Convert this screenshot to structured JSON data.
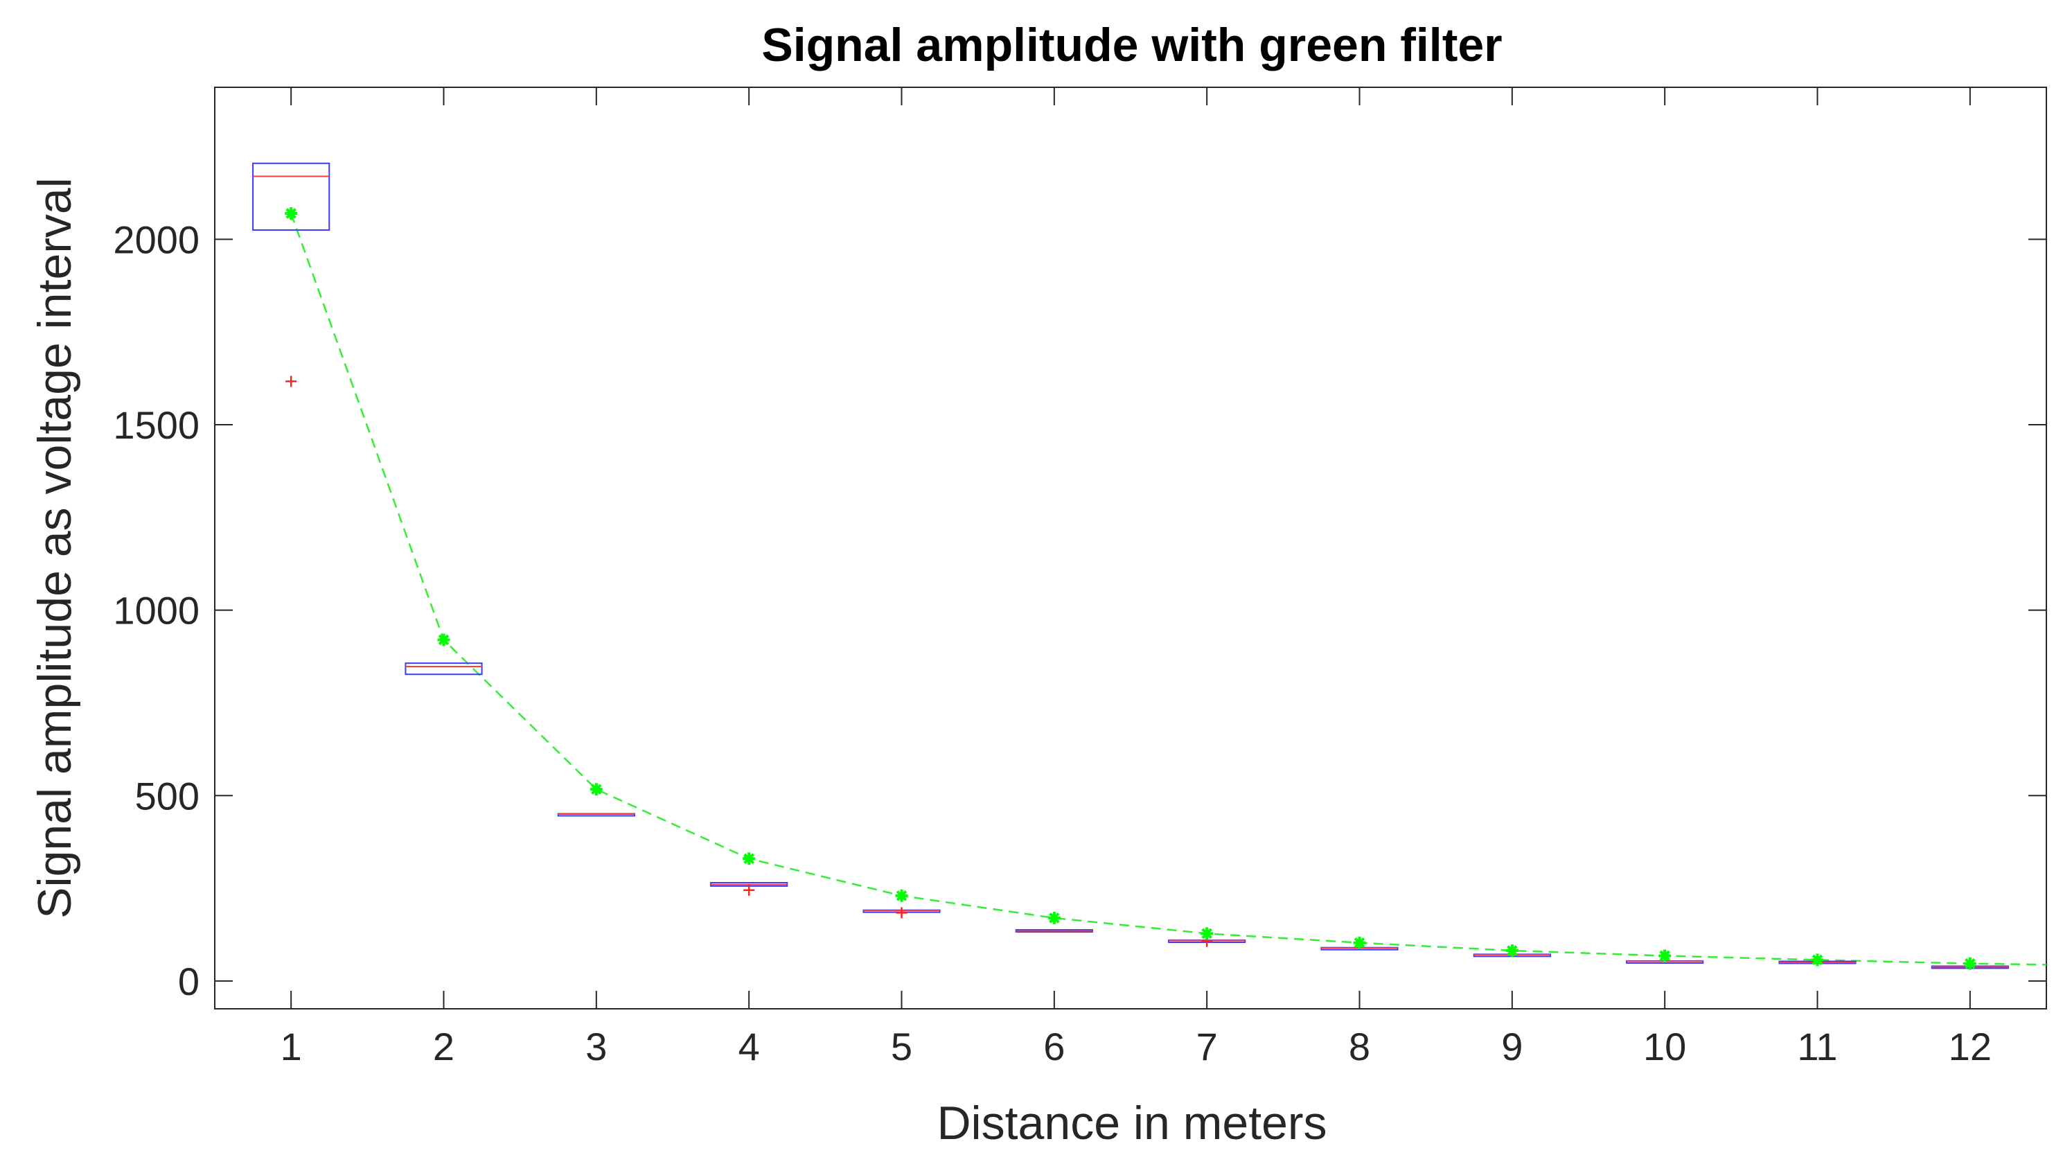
{
  "chart_data": {
    "type": "box",
    "title": "Signal amplitude with green filter",
    "xlabel": "Distance in meters",
    "ylabel": "Signal amplitude as voltage interval",
    "xlim": [
      0.5,
      12.5
    ],
    "ylim": [
      -75,
      2410
    ],
    "x_ticks": [
      1,
      2,
      3,
      4,
      5,
      6,
      7,
      8,
      9,
      10,
      11,
      12
    ],
    "y_ticks": [
      0,
      500,
      1000,
      1500,
      2000
    ],
    "grid": false,
    "legend": "none",
    "colors": {
      "box": "#3a3aff",
      "median": "#ff3b3b",
      "outlier": "#ff2020",
      "mean_marker": "#00ff00",
      "fit_line": "#33ee33",
      "axis": "#262626"
    },
    "boxes": [
      {
        "x": 1,
        "q1": 2025,
        "median": 2170,
        "q3": 2205,
        "min": 2025,
        "max": 2205,
        "outliers": [
          1617
        ]
      },
      {
        "x": 2,
        "q1": 827,
        "median": 848,
        "q3": 857,
        "min": 827,
        "max": 857,
        "outliers": []
      },
      {
        "x": 3,
        "q1": 449,
        "median": 450,
        "q3": 451,
        "min": 449,
        "max": 451,
        "outliers": []
      },
      {
        "x": 4,
        "q1": 256,
        "median": 260,
        "q3": 265,
        "min": 256,
        "max": 265,
        "outliers": [
          245
        ]
      },
      {
        "x": 5,
        "q1": 189,
        "median": 190,
        "q3": 191,
        "min": 189,
        "max": 191,
        "outliers": [
          184
        ]
      },
      {
        "x": 6,
        "q1": 133,
        "median": 135,
        "q3": 138,
        "min": 133,
        "max": 138,
        "outliers": []
      },
      {
        "x": 7,
        "q1": 108,
        "median": 109,
        "q3": 110,
        "min": 108,
        "max": 110,
        "outliers": [
          107
        ]
      },
      {
        "x": 8,
        "q1": 88,
        "median": 89,
        "q3": 90,
        "min": 88,
        "max": 90,
        "outliers": []
      },
      {
        "x": 9,
        "q1": 70,
        "median": 71,
        "q3": 72,
        "min": 70,
        "max": 72,
        "outliers": []
      },
      {
        "x": 10,
        "q1": 51,
        "median": 53,
        "q3": 54,
        "min": 51,
        "max": 54,
        "outliers": []
      },
      {
        "x": 11,
        "q1": 48,
        "median": 50,
        "q3": 53,
        "min": 48,
        "max": 53,
        "outliers": []
      },
      {
        "x": 12,
        "q1": 36,
        "median": 38,
        "q3": 40,
        "min": 36,
        "max": 40,
        "outliers": []
      }
    ],
    "mean_points": {
      "x": [
        1,
        2,
        3,
        4,
        5,
        6,
        7,
        8,
        9,
        10,
        11,
        12
      ],
      "y": [
        2070,
        920,
        517,
        330,
        230,
        170,
        128,
        103,
        82,
        68,
        57,
        47
      ]
    },
    "fit_line": {
      "style": "dashed",
      "x": [
        1,
        2,
        3,
        4,
        5,
        6,
        7,
        8,
        9,
        10,
        11,
        12,
        12.5
      ],
      "y": [
        2070,
        920,
        517,
        330,
        230,
        170,
        128,
        103,
        82,
        68,
        57,
        47,
        44
      ]
    }
  }
}
